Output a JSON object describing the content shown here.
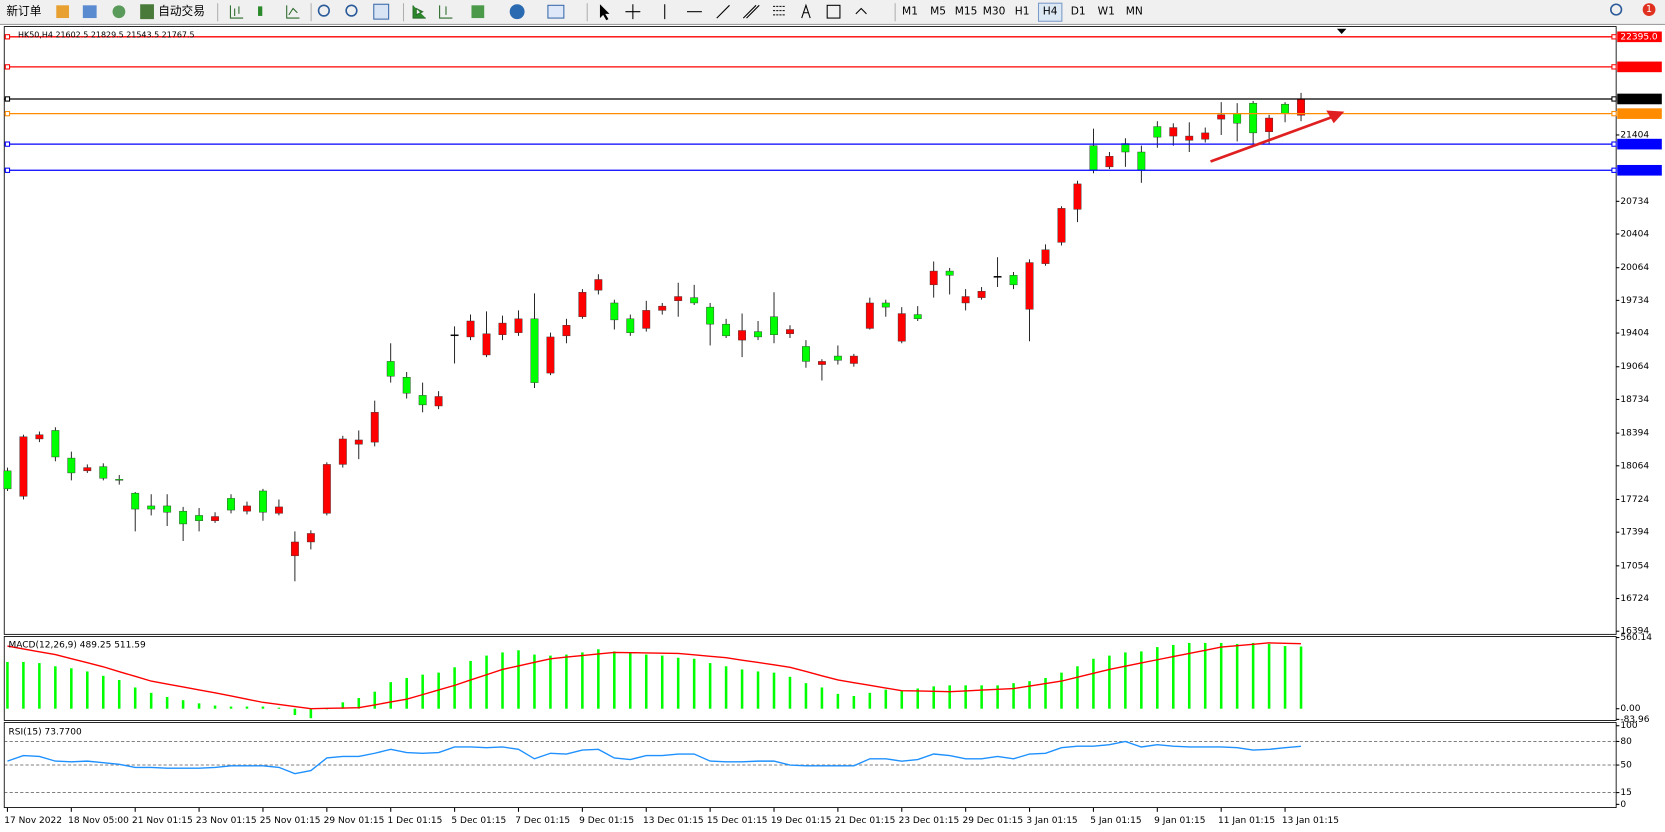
{
  "toolbar": {
    "new_order": "新订单",
    "auto_trading": "自动交易",
    "timeframes": [
      "M1",
      "M5",
      "M15",
      "M30",
      "H1",
      "H4",
      "D1",
      "W1",
      "MN"
    ],
    "active_timeframe": "H4",
    "notification": "1"
  },
  "chart_data": [
    {
      "type": "candlestick",
      "title": "HK50,H4 21602.5 21829.5 21543.5 21767.5",
      "up_color": "#ff0000",
      "down_color": "#00ff00",
      "grid": false,
      "ylim": [
        16373,
        22477
      ],
      "yticks": [
        21404,
        20734,
        20404,
        20064,
        19734,
        19404,
        19064,
        18734,
        18394,
        18064,
        17724,
        17394,
        17054,
        16724,
        16394
      ],
      "price_lines": [
        {
          "value": 22395,
          "label": "22395.0",
          "color": "#ff0000"
        },
        {
          "value": 22091.5,
          "color": "#ff0000"
        },
        {
          "value": 21767.5,
          "color": "#000000"
        },
        {
          "value": 21619.5,
          "color": "#ff8c00"
        },
        {
          "value": 21311.6,
          "color": "#0000ff"
        },
        {
          "value": 21047.6,
          "color": "#0000ff"
        }
      ],
      "x_labels": [
        "17 Nov 2022",
        "18 Nov 05:00",
        "21 Nov 01:15",
        "23 Nov 01:15",
        "25 Nov 01:15",
        "29 Nov 01:15",
        "1 Dec 01:15",
        "5 Dec 01:15",
        "7 Dec 01:15",
        "9 Dec 01:15",
        "13 Dec 01:15",
        "15 Dec 01:15",
        "19 Dec 01:15",
        "21 Dec 01:15",
        "23 Dec 01:15",
        "29 Dec 01:15",
        "3 Jan 01:15",
        "5 Jan 01:15",
        "9 Jan 01:15",
        "11 Jan 01:15",
        "13 Jan 01:15"
      ],
      "ohlc": [
        [
          18013,
          18046,
          17810,
          17831
        ],
        [
          17756,
          18378,
          17724,
          18357
        ],
        [
          18335,
          18410,
          18303,
          18378
        ],
        [
          18421,
          18453,
          18110,
          18153
        ],
        [
          18142,
          18207,
          17917,
          17992
        ],
        [
          18013,
          18078,
          17992,
          18046
        ],
        [
          18056,
          18089,
          17917,
          17938
        ],
        [
          17928,
          17971,
          17874,
          17925
        ],
        [
          17788,
          17799,
          17402,
          17627
        ],
        [
          17659,
          17777,
          17563,
          17627
        ],
        [
          17659,
          17777,
          17456,
          17595
        ],
        [
          17606,
          17649,
          17305,
          17477
        ],
        [
          17563,
          17638,
          17402,
          17509
        ],
        [
          17509,
          17595,
          17488,
          17552
        ],
        [
          17735,
          17777,
          17584,
          17617
        ],
        [
          17606,
          17702,
          17574,
          17659
        ],
        [
          17810,
          17831,
          17509,
          17595
        ],
        [
          17584,
          17724,
          17563,
          17649
        ],
        [
          17155,
          17402,
          16898,
          17295
        ],
        [
          17295,
          17413,
          17220,
          17381
        ],
        [
          17584,
          18099,
          17563,
          18078
        ],
        [
          18078,
          18367,
          18046,
          18335
        ],
        [
          18282,
          18421,
          18131,
          18325
        ],
        [
          18303,
          18722,
          18260,
          18604
        ],
        [
          19118,
          19301,
          18904,
          18968
        ],
        [
          18958,
          19011,
          18743,
          18797
        ],
        [
          18775,
          18904,
          18604,
          18679
        ],
        [
          18668,
          18818,
          18636,
          18764
        ],
        [
          19387,
          19472,
          19097,
          19387
        ],
        [
          19365,
          19591,
          19333,
          19526
        ],
        [
          19183,
          19623,
          19161,
          19397
        ],
        [
          19387,
          19580,
          19333,
          19505
        ],
        [
          19408,
          19633,
          19376,
          19548
        ],
        [
          19548,
          19805,
          18850,
          18904
        ],
        [
          19000,
          19408,
          18979,
          19365
        ],
        [
          19376,
          19548,
          19301,
          19483
        ],
        [
          19569,
          19848,
          19548,
          19816
        ],
        [
          19837,
          19998,
          19794,
          19945
        ],
        [
          19708,
          19741,
          19440,
          19537
        ],
        [
          19548,
          19591,
          19376,
          19408
        ],
        [
          19451,
          19730,
          19419,
          19633
        ],
        [
          19633,
          19708,
          19591,
          19676
        ],
        [
          19730,
          19912,
          19569,
          19773
        ],
        [
          19762,
          19891,
          19687,
          19708
        ],
        [
          19666,
          19708,
          19279,
          19494
        ],
        [
          19494,
          19548,
          19354,
          19376
        ],
        [
          19333,
          19601,
          19161,
          19430
        ],
        [
          19419,
          19526,
          19333,
          19365
        ],
        [
          19569,
          19816,
          19301,
          19387
        ],
        [
          19397,
          19483,
          19354,
          19440
        ],
        [
          19269,
          19333,
          19054,
          19118
        ],
        [
          19086,
          19140,
          18925,
          19118
        ],
        [
          19172,
          19279,
          19086,
          19129
        ],
        [
          19097,
          19194,
          19065,
          19172
        ],
        [
          19451,
          19762,
          19440,
          19708
        ],
        [
          19708,
          19741,
          19569,
          19666
        ],
        [
          19322,
          19666,
          19301,
          19601
        ],
        [
          19591,
          19676,
          19526,
          19548
        ],
        [
          19891,
          20127,
          19762,
          20030
        ],
        [
          20030,
          20062,
          19794,
          19987
        ],
        [
          19708,
          19848,
          19633,
          19773
        ],
        [
          19762,
          19869,
          19741,
          19826
        ],
        [
          19977,
          20170,
          19869,
          19977
        ],
        [
          19987,
          20020,
          19848,
          19891
        ],
        [
          19644,
          20148,
          19322,
          20116
        ],
        [
          20105,
          20299,
          20084,
          20245
        ],
        [
          20320,
          20685,
          20288,
          20663
        ],
        [
          20653,
          20942,
          20524,
          20910
        ],
        [
          21296,
          21468,
          21017,
          21050
        ],
        [
          21082,
          21232,
          21060,
          21189
        ],
        [
          21318,
          21371,
          21082,
          21232
        ],
        [
          21232,
          21296,
          20921,
          21050
        ],
        [
          21489,
          21543,
          21275,
          21382
        ],
        [
          21393,
          21522,
          21296,
          21479
        ],
        [
          21350,
          21532,
          21232,
          21393
        ],
        [
          21361,
          21479,
          21328,
          21425
        ],
        [
          21564,
          21736,
          21404,
          21607
        ],
        [
          21618,
          21725,
          21339,
          21522
        ],
        [
          21725,
          21747,
          21318,
          21425
        ],
        [
          21436,
          21607,
          21307,
          21575
        ],
        [
          21715,
          21736,
          21532,
          21618
        ],
        [
          21602.5,
          21829.5,
          21543.5,
          21767.5
        ]
      ]
    },
    {
      "type": "bar",
      "title": "MACD(12,26,9) 489.25 511.59",
      "ylim": [
        -83.96,
        560.14
      ],
      "yticks": [
        560.14,
        {
          "value": 0,
          "label": "0.00"
        },
        -83.96
      ],
      "series": [
        {
          "type": "bar",
          "color": "#00ff00",
          "values": [
            368,
            368,
            359,
            334,
            318,
            293,
            259,
            226,
            167,
            125,
            92,
            67,
            42,
            25,
            17,
            17,
            17,
            8,
            -50,
            -75,
            -5,
            50,
            84,
            134,
            209,
            242,
            268,
            284,
            326,
            376,
            418,
            443,
            460,
            426,
            418,
            426,
            443,
            468,
            451,
            443,
            426,
            418,
            401,
            393,
            359,
            334,
            309,
            293,
            284,
            251,
            201,
            167,
            117,
            100,
            125,
            150,
            142,
            159,
            176,
            184,
            184,
            184,
            184,
            201,
            217,
            242,
            284,
            334,
            393,
            418,
            443,
            451,
            485,
            502,
            518,
            518,
            518,
            510,
            518,
            510,
            493,
            489.25
          ]
        },
        {
          "type": "line",
          "color": "#ff0000",
          "values": [
            493,
            471,
            448,
            426,
            394,
            362,
            330,
            292,
            255,
            217,
            194,
            171,
            148,
            125,
            100,
            75,
            50,
            33,
            17,
            0,
            3,
            5,
            8,
            30,
            53,
            75,
            111,
            148,
            184,
            226,
            267,
            309,
            337,
            365,
            393,
            406,
            418,
            431,
            443,
            441,
            439,
            437,
            435,
            424,
            412,
            401,
            382,
            364,
            345,
            326,
            293,
            259,
            226,
            205,
            184,
            163,
            142,
            139,
            137,
            134,
            140,
            147,
            153,
            159,
            178,
            198,
            217,
            248,
            278,
            309,
            334,
            360,
            385,
            410,
            435,
            460,
            485,
            496,
            507,
            518,
            515,
            511.59
          ]
        }
      ]
    },
    {
      "type": "line",
      "title": "RSI(15) 73.7700",
      "ylim": [
        0,
        100
      ],
      "yticks": [
        100,
        80,
        50,
        15,
        0
      ],
      "series": [
        {
          "color": "#1e90ff",
          "values": [
            55,
            62,
            61,
            55,
            54,
            55,
            53,
            51,
            47,
            47,
            46,
            46,
            46,
            47,
            49,
            49,
            49,
            47,
            39,
            43,
            59,
            61,
            61,
            65,
            70,
            66,
            65,
            66,
            73,
            73,
            72,
            73,
            70,
            58,
            65,
            64,
            69,
            70,
            59,
            57,
            62,
            62,
            64,
            64,
            55,
            54,
            54,
            55,
            55,
            50,
            49,
            49,
            49,
            49,
            58,
            58,
            55,
            57,
            64,
            62,
            58,
            58,
            61,
            58,
            64,
            65,
            72,
            74,
            74,
            76,
            80,
            73,
            76,
            74,
            73,
            73,
            73,
            72,
            69,
            70,
            72,
            73.77
          ]
        }
      ]
    }
  ]
}
